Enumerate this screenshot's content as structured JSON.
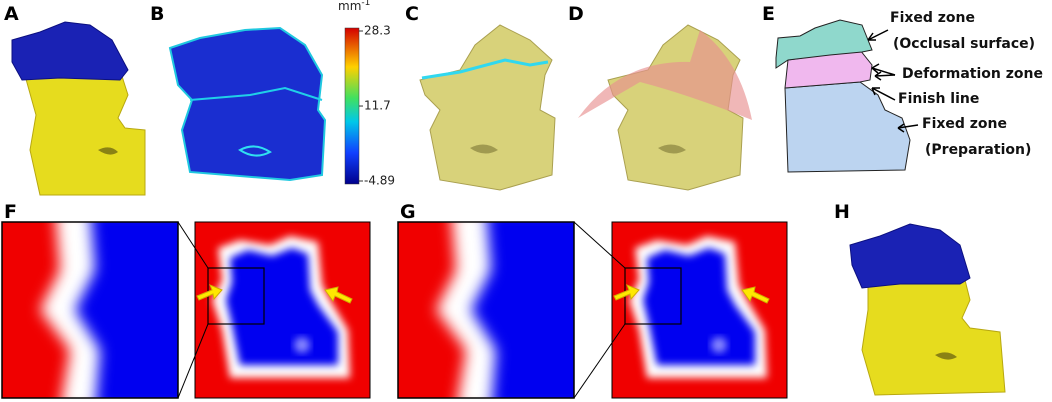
{
  "panels": [
    {
      "label": "A"
    },
    {
      "label": "B"
    },
    {
      "label": "C"
    },
    {
      "label": "D"
    },
    {
      "label": "E"
    },
    {
      "label": "F"
    },
    {
      "label": "G"
    },
    {
      "label": "H"
    }
  ],
  "colorbar": {
    "unit": "mm",
    "unit_exponent": "-1",
    "ticks": [
      28.3,
      11.7,
      -4.89
    ]
  },
  "annotations": [
    {
      "text": "Fixed zone"
    },
    {
      "text": "(Occlusal surface)"
    },
    {
      "text": "Deformation zone"
    },
    {
      "text": "Finish line"
    },
    {
      "text": "Fixed zone"
    },
    {
      "text": "(Preparation)"
    }
  ]
}
